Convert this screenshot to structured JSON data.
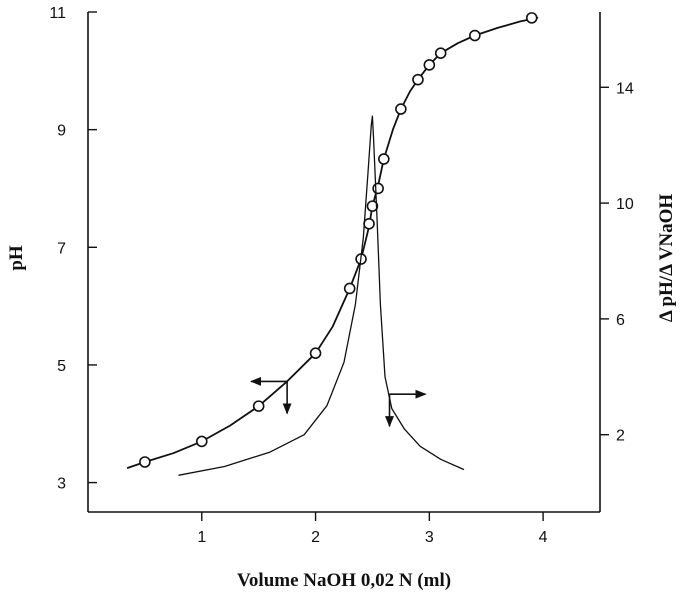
{
  "chart_data": {
    "type": "line",
    "xlabel": "Volume  NaOH  0,02  N  (ml)",
    "ylabel": "pH",
    "y2label": "Δ pH/Δ VNaOH",
    "xlim": [
      0,
      4.5
    ],
    "ylim": [
      2.5,
      11
    ],
    "y2lim": [
      -0.67,
      16.6
    ],
    "x_ticks": [
      1,
      2,
      3,
      4
    ],
    "y_ticks": [
      3,
      5,
      7,
      9,
      11
    ],
    "y2_ticks": [
      2,
      6,
      10,
      14
    ],
    "grid": false,
    "series": [
      {
        "axis": "left",
        "markers": true,
        "points": [
          [
            0.5,
            3.35
          ],
          [
            1.0,
            3.7
          ],
          [
            1.5,
            4.3
          ],
          [
            2.0,
            5.2
          ],
          [
            2.3,
            6.3
          ],
          [
            2.4,
            6.8
          ],
          [
            2.47,
            7.4
          ],
          [
            2.5,
            7.7
          ],
          [
            2.55,
            8.0
          ],
          [
            2.6,
            8.5
          ],
          [
            2.75,
            9.35
          ],
          [
            2.9,
            9.85
          ],
          [
            3.0,
            10.1
          ],
          [
            3.1,
            10.3
          ],
          [
            3.4,
            10.6
          ],
          [
            3.9,
            10.9
          ]
        ],
        "curve": [
          [
            0.35,
            3.25
          ],
          [
            0.5,
            3.35
          ],
          [
            0.75,
            3.5
          ],
          [
            1.0,
            3.7
          ],
          [
            1.25,
            3.97
          ],
          [
            1.5,
            4.3
          ],
          [
            1.75,
            4.72
          ],
          [
            2.0,
            5.2
          ],
          [
            2.15,
            5.65
          ],
          [
            2.3,
            6.3
          ],
          [
            2.4,
            6.8
          ],
          [
            2.47,
            7.35
          ],
          [
            2.5,
            7.7
          ],
          [
            2.55,
            8.05
          ],
          [
            2.6,
            8.5
          ],
          [
            2.68,
            9.0
          ],
          [
            2.75,
            9.35
          ],
          [
            2.83,
            9.65
          ],
          [
            2.9,
            9.85
          ],
          [
            3.0,
            10.1
          ],
          [
            3.1,
            10.3
          ],
          [
            3.25,
            10.47
          ],
          [
            3.4,
            10.6
          ],
          [
            3.6,
            10.73
          ],
          [
            3.8,
            10.84
          ],
          [
            3.95,
            10.9
          ]
        ]
      },
      {
        "axis": "right",
        "markers": false,
        "curve": [
          [
            0.8,
            0.6
          ],
          [
            1.2,
            0.9
          ],
          [
            1.6,
            1.4
          ],
          [
            1.9,
            2.0
          ],
          [
            2.1,
            3.0
          ],
          [
            2.25,
            4.5
          ],
          [
            2.35,
            6.5
          ],
          [
            2.42,
            8.8
          ],
          [
            2.46,
            11.0
          ],
          [
            2.49,
            12.7
          ],
          [
            2.5,
            13.0
          ],
          [
            2.51,
            12.2
          ],
          [
            2.54,
            9.5
          ],
          [
            2.57,
            6.5
          ],
          [
            2.61,
            4.0
          ],
          [
            2.67,
            2.9
          ],
          [
            2.78,
            2.2
          ],
          [
            2.92,
            1.6
          ],
          [
            3.1,
            1.15
          ],
          [
            3.3,
            0.8
          ]
        ]
      }
    ],
    "annotations": [
      {
        "type": "arrow-pair",
        "x": 1.75,
        "y": 4.72,
        "horizontal": "left",
        "vertical": "down",
        "axis": "left"
      },
      {
        "type": "arrow-pair",
        "x": 2.65,
        "y": 3.4,
        "horizontal": "right",
        "vertical": "down",
        "axis": "right"
      }
    ]
  }
}
